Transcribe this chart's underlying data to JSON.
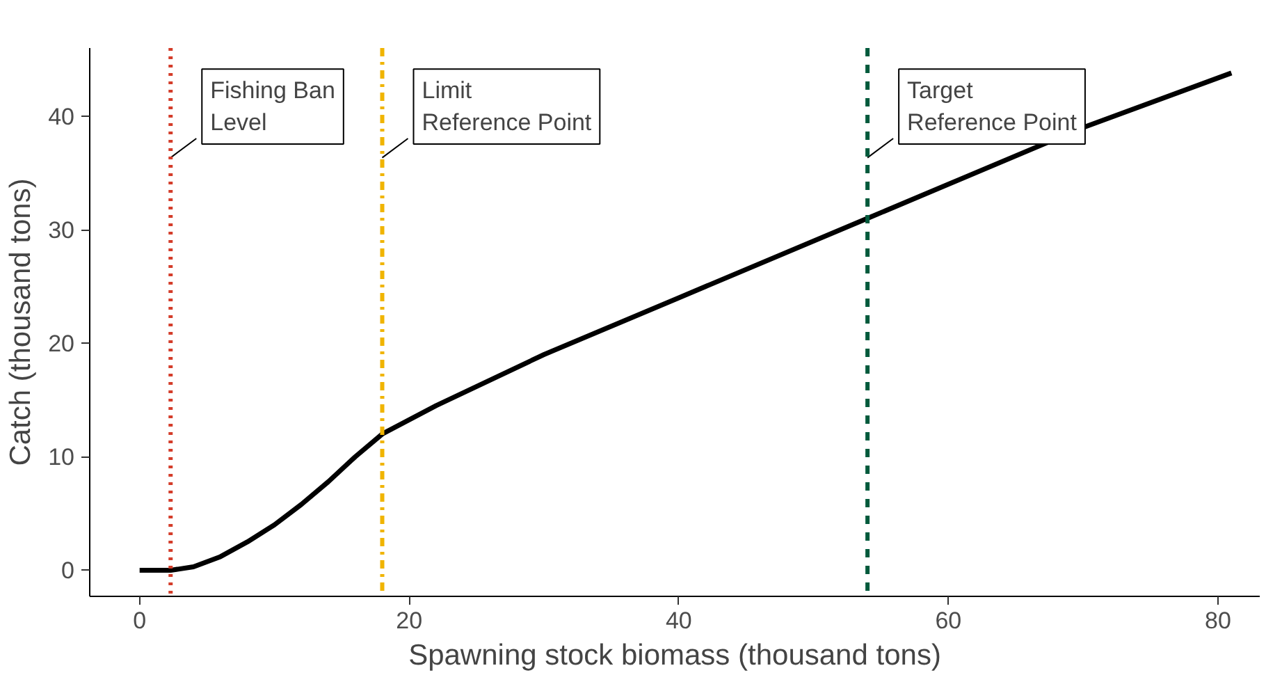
{
  "chart_data": {
    "type": "line",
    "xlabel": "Spawning stock biomass (thousand tons)",
    "ylabel": "Catch (thousand tons)",
    "x": [
      0,
      2.3,
      4,
      6,
      8,
      10,
      12,
      14,
      16,
      18,
      22,
      30,
      40,
      54,
      60,
      70,
      81
    ],
    "series": [
      {
        "color": "#000000",
        "values": [
          0,
          0,
          0.3,
          1.2,
          2.5,
          4,
          5.8,
          7.8,
          10,
          12,
          14.5,
          19,
          24,
          31,
          34,
          39,
          43.8
        ]
      }
    ],
    "xlim": [
      -3.7,
      83.1
    ],
    "ylim": [
      -2.3,
      46
    ],
    "xticks": [
      0,
      20,
      40,
      60,
      80
    ],
    "yticks": [
      0,
      10,
      20,
      30,
      40
    ],
    "grid": false,
    "marker": "none",
    "line_style": "solid",
    "ref_lines": [
      {
        "axis": "x",
        "value": 2.3,
        "label": "Fishing Ban\nLevel",
        "color": "#d43d2a",
        "line_style": "dotted"
      },
      {
        "axis": "x",
        "value": 18,
        "label": "Limit\nReference Point",
        "color": "#f0b400",
        "line_style": "dashdot"
      },
      {
        "axis": "x",
        "value": 54,
        "label": "Target\nReference Point",
        "color": "#005a3c",
        "line_style": "dashed"
      }
    ]
  }
}
